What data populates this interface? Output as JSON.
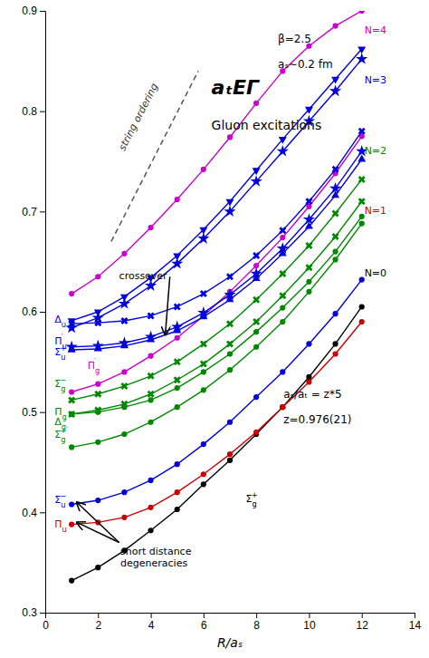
{
  "chart_data": {
    "type": "line",
    "title": "aₜEΓ",
    "subtitle": "Gluon excitations",
    "x_label": "R/aₛ",
    "xlim": [
      0,
      14
    ],
    "ylim": [
      0.3,
      0.9
    ],
    "xticks": [
      0,
      2,
      4,
      6,
      8,
      10,
      12,
      14
    ],
    "yticks": [
      0.3,
      0.4,
      0.5,
      0.6,
      0.7,
      0.8,
      0.9
    ],
    "grid": false,
    "series": [
      {
        "color": "#000000",
        "marker": "circle",
        "line_style": "solid",
        "x": [
          1,
          2,
          3,
          4,
          5,
          6,
          7,
          8,
          9,
          10,
          11,
          12
        ],
        "values": [
          0.332,
          0.345,
          0.362,
          0.382,
          0.403,
          0.428,
          0.452,
          0.478,
          0.505,
          0.535,
          0.568,
          0.605
        ]
      },
      {
        "color": "#cc0000",
        "marker": "circle",
        "line_style": "solid",
        "x": [
          1,
          2,
          3,
          4,
          5,
          6,
          7,
          8,
          9,
          10,
          11,
          12
        ],
        "values": [
          0.388,
          0.39,
          0.395,
          0.405,
          0.42,
          0.438,
          0.458,
          0.48,
          0.505,
          0.53,
          0.558,
          0.59
        ]
      },
      {
        "color": "#0000dd",
        "marker": "circle",
        "line_style": "solid",
        "x": [
          1,
          2,
          3,
          4,
          5,
          6,
          7,
          8,
          9,
          10,
          11,
          12
        ],
        "values": [
          0.408,
          0.412,
          0.42,
          0.432,
          0.448,
          0.468,
          0.49,
          0.515,
          0.54,
          0.568,
          0.598,
          0.632
        ]
      },
      {
        "color": "#008800",
        "marker": "circle",
        "line_style": "solid",
        "x": [
          1,
          2,
          3,
          4,
          5,
          6,
          7,
          8,
          9,
          10,
          11,
          12
        ],
        "values": [
          0.465,
          0.47,
          0.478,
          0.49,
          0.505,
          0.522,
          0.542,
          0.565,
          0.59,
          0.62,
          0.652,
          0.688
        ]
      },
      {
        "color": "#008800",
        "marker": "circle",
        "line_style": "solid",
        "x": [
          1,
          2,
          3,
          4,
          5,
          6,
          7,
          8,
          9,
          10,
          11,
          12
        ],
        "values": [
          0.498,
          0.5,
          0.505,
          0.512,
          0.524,
          0.54,
          0.558,
          0.58,
          0.604,
          0.63,
          0.66,
          0.695
        ]
      },
      {
        "color": "#008800",
        "marker": "x",
        "line_style": "solid",
        "x": [
          1,
          2,
          3,
          4,
          5,
          6,
          7,
          8,
          9,
          10,
          11,
          12
        ],
        "values": [
          0.498,
          0.502,
          0.508,
          0.518,
          0.532,
          0.548,
          0.568,
          0.59,
          0.616,
          0.644,
          0.675,
          0.71
        ]
      },
      {
        "color": "#008800",
        "marker": "x",
        "line_style": "solid",
        "x": [
          1,
          2,
          3,
          4,
          5,
          6,
          7,
          8,
          9,
          10,
          11,
          12
        ],
        "values": [
          0.512,
          0.518,
          0.526,
          0.536,
          0.55,
          0.568,
          0.588,
          0.612,
          0.638,
          0.666,
          0.698,
          0.732
        ]
      },
      {
        "color": "#cc00cc",
        "marker": "circle",
        "line_style": "solid",
        "x": [
          1,
          2,
          3,
          4,
          5,
          6,
          7,
          8,
          9,
          10,
          11,
          12
        ],
        "values": [
          0.52,
          0.528,
          0.54,
          0.556,
          0.574,
          0.596,
          0.62,
          0.646,
          0.674,
          0.705,
          0.738,
          0.775
        ]
      },
      {
        "color": "#0000dd",
        "marker": "triangle-up",
        "line_style": "solid",
        "x": [
          1,
          2,
          3,
          4,
          5,
          6,
          7,
          8,
          9,
          10,
          11,
          12
        ],
        "values": [
          0.562,
          0.563,
          0.566,
          0.572,
          0.581,
          0.595,
          0.612,
          0.633,
          0.658,
          0.685,
          0.716,
          0.752
        ]
      },
      {
        "color": "#0000dd",
        "marker": "star",
        "line_style": "solid",
        "x": [
          1,
          2,
          3,
          4,
          5,
          6,
          7,
          8,
          9,
          10,
          11,
          12
        ],
        "values": [
          0.565,
          0.566,
          0.569,
          0.575,
          0.585,
          0.599,
          0.617,
          0.638,
          0.663,
          0.692,
          0.723,
          0.76
        ]
      },
      {
        "color": "#0000dd",
        "marker": "x",
        "line_style": "solid",
        "x": [
          1,
          2,
          3,
          4,
          5,
          6,
          7,
          8,
          9,
          10,
          11,
          12
        ],
        "values": [
          0.588,
          0.589,
          0.591,
          0.596,
          0.605,
          0.618,
          0.635,
          0.656,
          0.681,
          0.71,
          0.742,
          0.78
        ]
      },
      {
        "color": "#0000dd",
        "marker": "triangle-down",
        "line_style": "solid",
        "x": [
          1,
          2,
          3,
          4,
          5,
          6,
          7,
          8,
          9,
          10,
          11,
          12
        ],
        "values": [
          0.591,
          0.6,
          0.615,
          0.634,
          0.656,
          0.682,
          0.71,
          0.741,
          0.772,
          0.802,
          0.832,
          0.862
        ]
      },
      {
        "color": "#0000dd",
        "marker": "star",
        "line_style": "solid",
        "x": [
          1,
          2,
          3,
          4,
          5,
          6,
          7,
          8,
          9,
          10,
          11,
          12
        ],
        "values": [
          0.584,
          0.594,
          0.608,
          0.626,
          0.648,
          0.673,
          0.7,
          0.73,
          0.76,
          0.79,
          0.82,
          0.852
        ]
      },
      {
        "color": "#cc00cc",
        "marker": "circle",
        "line_style": "solid",
        "x": [
          1,
          2,
          3,
          4,
          5,
          6,
          7,
          8,
          9,
          10,
          11,
          12
        ],
        "values": [
          0.618,
          0.635,
          0.658,
          0.684,
          0.712,
          0.742,
          0.774,
          0.808,
          0.84,
          0.865,
          0.885,
          0.9
        ]
      },
      {
        "color": "#555555",
        "marker": "none",
        "line_style": "dashed",
        "x": [
          2.5,
          5.8
        ],
        "values": [
          0.67,
          0.84
        ],
        "label": {
          "text": "string ordering",
          "x": 3.0,
          "y": 0.76,
          "color": "#333333"
        }
      }
    ],
    "annotations": [
      {
        "text": "N=4",
        "x": 12.1,
        "y": 0.88,
        "color": "#cc00cc"
      },
      {
        "text": "N=3",
        "x": 12.1,
        "y": 0.83,
        "color": "#0000dd"
      },
      {
        "text": "N=2",
        "x": 12.1,
        "y": 0.76,
        "color": "#008800"
      },
      {
        "text": "N=1",
        "x": 12.1,
        "y": 0.7,
        "color": "#cc0000"
      },
      {
        "text": "N=0",
        "x": 12.1,
        "y": 0.638,
        "color": "#000000"
      },
      {
        "text": "Δu",
        "x": 0.35,
        "y": 0.592,
        "color": "#0000dd"
      },
      {
        "text": "Πu′",
        "x": 0.35,
        "y": 0.57,
        "color": "#0000dd"
      },
      {
        "text": "Σu+",
        "x": 0.35,
        "y": 0.559,
        "color": "#0000dd"
      },
      {
        "text": "Πg′",
        "x": 1.6,
        "y": 0.546,
        "color": "#cc00cc"
      },
      {
        "text": "Σg−",
        "x": 0.35,
        "y": 0.528,
        "color": "#008800"
      },
      {
        "text": "Πg",
        "x": 0.35,
        "y": 0.5,
        "color": "#008800"
      },
      {
        "text": "Δg",
        "x": 0.35,
        "y": 0.49,
        "color": "#008800"
      },
      {
        "text": "Σg+′",
        "x": 0.35,
        "y": 0.477,
        "color": "#008800"
      },
      {
        "text": "Σu−",
        "x": 0.35,
        "y": 0.412,
        "color": "#0000dd"
      },
      {
        "text": "Πu",
        "x": 0.35,
        "y": 0.388,
        "color": "#cc0000"
      },
      {
        "text": "Σg+",
        "x": 7.6,
        "y": 0.413,
        "color": "#000000"
      },
      {
        "text": "crossover",
        "x": 2.8,
        "y": 0.635,
        "color": "#000000",
        "arrow_to": [
          [
            4.55,
            0.577
          ]
        ]
      },
      {
        "text": "short distance\ndegeneracies",
        "x": 2.85,
        "y": 0.365,
        "color": "#000000",
        "arrow_from": [
          2.8,
          0.37
        ],
        "arrow_to": [
          [
            1.2,
            0.39
          ],
          [
            1.2,
            0.41
          ]
        ]
      },
      {
        "text": "β=2.5",
        "color": "#000000"
      },
      {
        "text": "aₛ∼0.2 fm",
        "color": "#000000"
      },
      {
        "text": "aₛ/aₜ = z*5",
        "color": "#000000"
      },
      {
        "text": "z=0.976(21)",
        "color": "#000000"
      }
    ]
  }
}
